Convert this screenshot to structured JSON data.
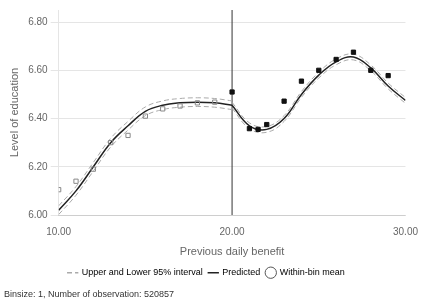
{
  "chart_data": {
    "type": "scatter",
    "xlabel": "Previous daily benefit",
    "ylabel": "Level of education",
    "footnote": "Binsize: 1, Number of observation: 520857",
    "xlim": [
      10,
      30
    ],
    "ylim": [
      6.0,
      6.85
    ],
    "xticks": [
      {
        "value": 10.0,
        "label": "10.00"
      },
      {
        "value": 20.0,
        "label": "20.00"
      },
      {
        "value": 30.0,
        "label": "30.00"
      }
    ],
    "yticks": [
      {
        "value": 6.0,
        "label": "6.00"
      },
      {
        "value": 6.2,
        "label": "6.20"
      },
      {
        "value": 6.4,
        "label": "6.40"
      },
      {
        "value": 6.6,
        "label": "6.60"
      },
      {
        "value": 6.8,
        "label": "6.80"
      }
    ],
    "grid": "y",
    "legend": "bottom",
    "vlines": [
      {
        "x": 20.0,
        "color": "#333333"
      }
    ],
    "series": [
      {
        "name": "Upper and Lower 95% interval",
        "color": "#aaaaaa",
        "line_style": "dashed",
        "marker": "none",
        "parts": [
          {
            "x": [
              10,
              11,
              12,
              13,
              14,
              15,
              16,
              17,
              18,
              19,
              20
            ],
            "values": [
              6.038,
              6.118,
              6.218,
              6.318,
              6.388,
              6.448,
              6.473,
              6.483,
              6.486,
              6.483,
              6.473
            ]
          },
          {
            "x": [
              10,
              11,
              12,
              13,
              14,
              15,
              16,
              17,
              18,
              19,
              20
            ],
            "values": [
              6.002,
              6.082,
              6.182,
              6.282,
              6.352,
              6.412,
              6.437,
              6.447,
              6.45,
              6.447,
              6.437
            ]
          },
          {
            "x": [
              20,
              21,
              22,
              23,
              24,
              25,
              26,
              27,
              28,
              29,
              30
            ],
            "values": [
              6.467,
              6.382,
              6.367,
              6.412,
              6.512,
              6.592,
              6.647,
              6.667,
              6.622,
              6.547,
              6.487
            ]
          },
          {
            "x": [
              20,
              21,
              22,
              23,
              24,
              25,
              26,
              27,
              28,
              29,
              30
            ],
            "values": [
              6.443,
              6.358,
              6.343,
              6.388,
              6.488,
              6.568,
              6.623,
              6.643,
              6.598,
              6.523,
              6.463
            ]
          }
        ]
      },
      {
        "name": "Predicted",
        "color": "#222222",
        "line_style": "solid",
        "marker": "none",
        "parts": [
          {
            "x": [
              10,
              11,
              12,
              13,
              14,
              15,
              16,
              17,
              18,
              19,
              20
            ],
            "values": [
              6.02,
              6.1,
              6.2,
              6.3,
              6.37,
              6.43,
              6.455,
              6.465,
              6.468,
              6.465,
              6.455
            ]
          },
          {
            "x": [
              20,
              21,
              22,
              23,
              24,
              25,
              26,
              27,
              28,
              29,
              30
            ],
            "values": [
              6.455,
              6.37,
              6.355,
              6.4,
              6.5,
              6.58,
              6.635,
              6.655,
              6.61,
              6.535,
              6.475
            ]
          }
        ]
      },
      {
        "name": "Within-bin mean",
        "color": "#555555",
        "line_style": "none",
        "marker": "circle_open",
        "parts": [
          {
            "x": [
              10,
              11,
              12,
              13,
              14,
              15,
              16,
              17,
              18,
              19
            ],
            "values": [
              6.105,
              6.14,
              6.19,
              6.3,
              6.33,
              6.41,
              6.44,
              6.452,
              6.465,
              6.468
            ],
            "color": "#888888",
            "marker": "square_open"
          },
          {
            "x": [
              20,
              21,
              21.5,
              22,
              23,
              24,
              25,
              26,
              27,
              28,
              29
            ],
            "values": [
              6.51,
              6.358,
              6.355,
              6.375,
              6.472,
              6.555,
              6.6,
              6.645,
              6.675,
              6.6,
              6.578
            ],
            "color": "#111111",
            "marker": "square"
          }
        ]
      }
    ]
  }
}
